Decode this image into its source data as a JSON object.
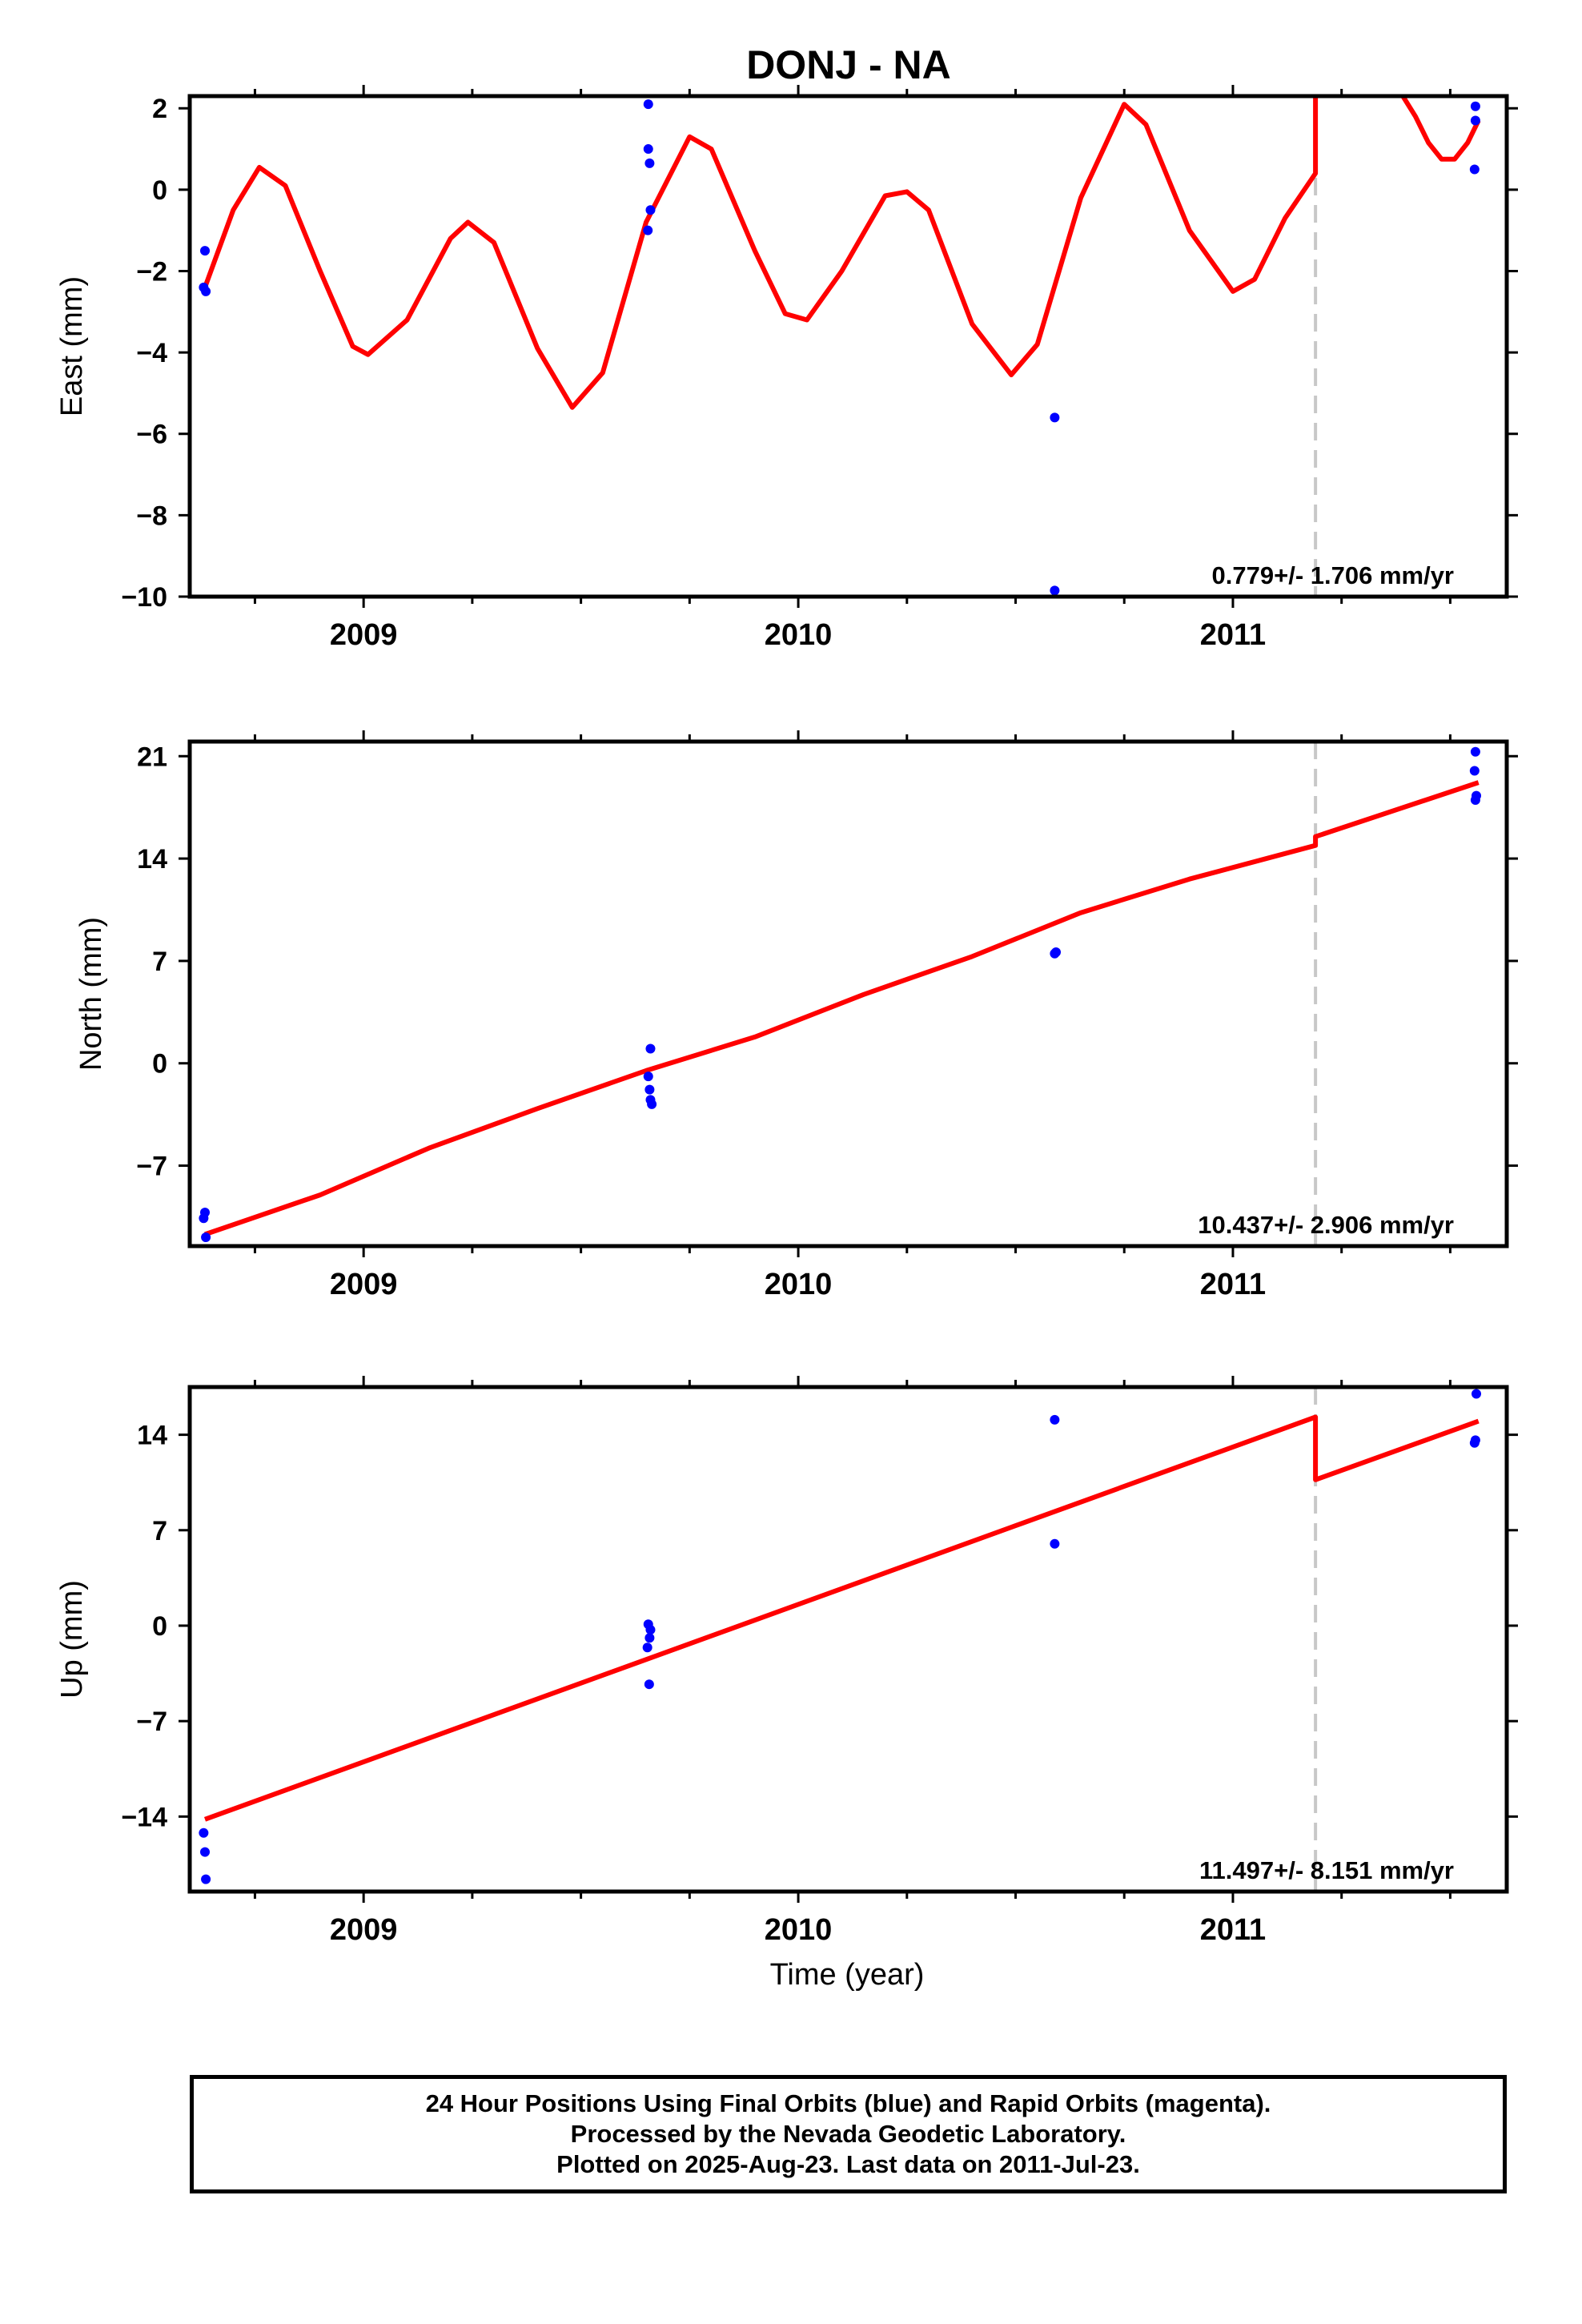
{
  "title": "DONJ - NA",
  "xlabel": "Time (year)",
  "colors": {
    "model": "#ff0000",
    "final_orbits": "#0000ff",
    "rapid_orbits": "#ff00ff",
    "offset_line": "#c8c8c8"
  },
  "chart_data": [
    {
      "type": "scatter",
      "name": "East",
      "ylabel": "East (mm)",
      "ylim": [
        -10,
        2.3
      ],
      "yticks": [
        2,
        0,
        -2,
        -4,
        -6,
        -8,
        -10
      ],
      "ytick_labels": [
        "2",
        "0",
        "−2",
        "−4",
        "−6",
        "−8",
        "−10"
      ],
      "xlim": [
        2008.6,
        2011.63
      ],
      "xticks": [
        2009,
        2010,
        2011
      ],
      "xtick_labels": [
        "2009",
        "2010",
        "2011"
      ],
      "offset_epoch": 2011.19,
      "rate_text": "0.779+/- 1.706 mm/yr",
      "points": [
        {
          "x": 2008.635,
          "y": -1.5
        },
        {
          "x": 2008.632,
          "y": -2.4
        },
        {
          "x": 2008.637,
          "y": -2.5
        },
        {
          "x": 2009.655,
          "y": 2.1
        },
        {
          "x": 2009.655,
          "y": 1.0
        },
        {
          "x": 2009.658,
          "y": 0.65
        },
        {
          "x": 2009.66,
          "y": -0.5
        },
        {
          "x": 2009.654,
          "y": -1.0
        },
        {
          "x": 2010.59,
          "y": -5.6
        },
        {
          "x": 2010.59,
          "y": -9.85
        },
        {
          "x": 2011.558,
          "y": 2.05
        },
        {
          "x": 2011.558,
          "y": 1.7
        },
        {
          "x": 2011.556,
          "y": 0.5
        }
      ],
      "model": [
        [
          2008.635,
          -2.4
        ],
        [
          2008.7,
          -0.5
        ],
        [
          2008.76,
          0.55
        ],
        [
          2008.82,
          0.1
        ],
        [
          2008.9,
          -2.0
        ],
        [
          2008.975,
          -3.85
        ],
        [
          2009.01,
          -4.05
        ],
        [
          2009.1,
          -3.2
        ],
        [
          2009.2,
          -1.2
        ],
        [
          2009.24,
          -0.8
        ],
        [
          2009.3,
          -1.3
        ],
        [
          2009.4,
          -3.9
        ],
        [
          2009.48,
          -5.35
        ],
        [
          2009.55,
          -4.5
        ],
        [
          2009.65,
          -0.8
        ],
        [
          2009.75,
          1.3
        ],
        [
          2009.8,
          1.0
        ],
        [
          2009.9,
          -1.5
        ],
        [
          2009.97,
          -3.05
        ],
        [
          2010.02,
          -3.2
        ],
        [
          2010.1,
          -2.0
        ],
        [
          2010.2,
          -0.15
        ],
        [
          2010.25,
          -0.05
        ],
        [
          2010.3,
          -0.5
        ],
        [
          2010.4,
          -3.3
        ],
        [
          2010.49,
          -4.55
        ],
        [
          2010.55,
          -3.8
        ],
        [
          2010.65,
          -0.2
        ],
        [
          2010.75,
          2.1
        ],
        [
          2010.8,
          1.6
        ],
        [
          2010.9,
          -1.0
        ],
        [
          2011.0,
          -2.5
        ],
        [
          2011.05,
          -2.2
        ],
        [
          2011.12,
          -0.7
        ],
        [
          2011.19,
          0.4
        ],
        [
          2011.19,
          2.4
        ]
      ],
      "model_segment_2": [
        [
          2011.385,
          2.4
        ],
        [
          2011.42,
          1.8
        ],
        [
          2011.45,
          1.15
        ],
        [
          2011.48,
          0.75
        ],
        [
          2011.51,
          0.75
        ],
        [
          2011.54,
          1.15
        ],
        [
          2011.565,
          1.7
        ]
      ]
    },
    {
      "type": "scatter",
      "name": "North",
      "ylabel": "North (mm)",
      "ylim": [
        -12.5,
        22
      ],
      "yticks": [
        21,
        14,
        7,
        0,
        -7
      ],
      "ytick_labels": [
        "21",
        "14",
        "7",
        "0",
        "−7"
      ],
      "xlim": [
        2008.6,
        2011.63
      ],
      "xticks": [
        2009,
        2010,
        2011
      ],
      "xtick_labels": [
        "2009",
        "2010",
        "2011"
      ],
      "offset_epoch": 2011.19,
      "rate_text": "10.437+/- 2.906 mm/yr",
      "points": [
        {
          "x": 2008.635,
          "y": -10.2
        },
        {
          "x": 2008.632,
          "y": -10.6
        },
        {
          "x": 2008.637,
          "y": -11.9
        },
        {
          "x": 2009.66,
          "y": 1.0
        },
        {
          "x": 2009.655,
          "y": -0.9
        },
        {
          "x": 2009.658,
          "y": -1.8
        },
        {
          "x": 2009.66,
          "y": -2.5
        },
        {
          "x": 2009.663,
          "y": -2.8
        },
        {
          "x": 2010.59,
          "y": 7.5
        },
        {
          "x": 2010.593,
          "y": 7.6
        },
        {
          "x": 2011.558,
          "y": 21.3
        },
        {
          "x": 2011.556,
          "y": 20.0
        },
        {
          "x": 2011.558,
          "y": 18.0
        },
        {
          "x": 2011.56,
          "y": 18.3
        }
      ],
      "model": [
        [
          2008.635,
          -11.7
        ],
        [
          2008.9,
          -9.0
        ],
        [
          2009.15,
          -5.8
        ],
        [
          2009.4,
          -3.1
        ],
        [
          2009.65,
          -0.5
        ],
        [
          2009.9,
          1.8
        ],
        [
          2010.15,
          4.7
        ],
        [
          2010.4,
          7.3
        ],
        [
          2010.65,
          10.3
        ],
        [
          2010.9,
          12.6
        ],
        [
          2011.19,
          14.9
        ],
        [
          2011.19,
          15.5
        ],
        [
          2011.565,
          19.2
        ]
      ]
    },
    {
      "type": "scatter",
      "name": "Up",
      "ylabel": "Up (mm)",
      "ylim": [
        -19.5,
        17.5
      ],
      "yticks": [
        14,
        7,
        0,
        -7,
        -14
      ],
      "ytick_labels": [
        "14",
        "7",
        "0",
        "−7",
        "−14"
      ],
      "xlim": [
        2008.6,
        2011.63
      ],
      "xticks": [
        2009,
        2010,
        2011
      ],
      "xtick_labels": [
        "2009",
        "2010",
        "2011"
      ],
      "offset_epoch": 2011.19,
      "rate_text": "11.497+/- 8.151 mm/yr",
      "points": [
        {
          "x": 2008.632,
          "y": -15.2
        },
        {
          "x": 2008.635,
          "y": -16.6
        },
        {
          "x": 2008.637,
          "y": -18.6
        },
        {
          "x": 2009.655,
          "y": 0.1
        },
        {
          "x": 2009.66,
          "y": -0.3
        },
        {
          "x": 2009.658,
          "y": -0.9
        },
        {
          "x": 2009.653,
          "y": -1.6
        },
        {
          "x": 2009.657,
          "y": -4.3
        },
        {
          "x": 2010.59,
          "y": 15.1
        },
        {
          "x": 2010.59,
          "y": 6.0
        },
        {
          "x": 2011.56,
          "y": 17.0
        },
        {
          "x": 2011.558,
          "y": 13.6
        },
        {
          "x": 2011.556,
          "y": 13.4
        }
      ],
      "model": [
        [
          2008.635,
          -14.2
        ],
        [
          2011.19,
          15.3
        ],
        [
          2011.19,
          10.7
        ],
        [
          2011.565,
          15.0
        ]
      ]
    }
  ],
  "footer": {
    "line1": "24 Hour Positions Using Final Orbits (blue) and Rapid Orbits (magenta).",
    "line2": "Processed by the Nevada Geodetic Laboratory.",
    "line3": "Plotted on 2025-Aug-23. Last data on 2011-Jul-23."
  }
}
